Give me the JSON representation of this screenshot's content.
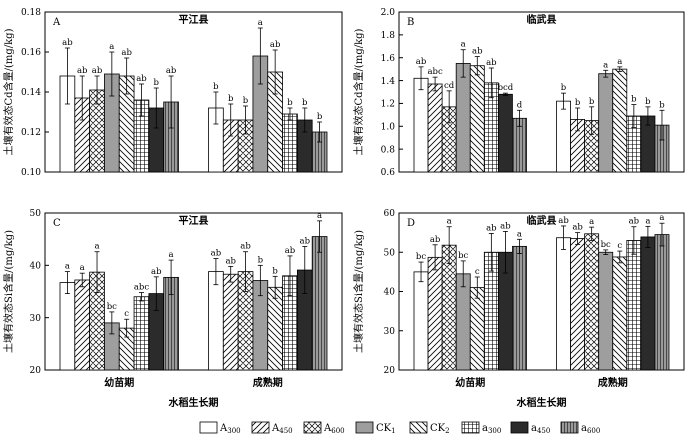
{
  "figure": {
    "x_title": "水稻生长期",
    "groups": [
      "幼苗期",
      "成熟期"
    ],
    "treatments": [
      {
        "key": "A300",
        "base": "A",
        "sub": "300",
        "pattern": "white"
      },
      {
        "key": "A450",
        "base": "A",
        "sub": "450",
        "pattern": "diag-fwd"
      },
      {
        "key": "A600",
        "base": "A",
        "sub": "600",
        "pattern": "crosshatch"
      },
      {
        "key": "CK1",
        "base": "CK",
        "sub": "1",
        "pattern": "gray"
      },
      {
        "key": "CK2",
        "base": "CK",
        "sub": "2",
        "pattern": "diag-back"
      },
      {
        "key": "a300",
        "base": "a",
        "sub": "300",
        "pattern": "grid"
      },
      {
        "key": "a450",
        "base": "a",
        "sub": "450",
        "pattern": "black"
      },
      {
        "key": "a600",
        "base": "a",
        "sub": "600",
        "pattern": "vstripe"
      }
    ]
  },
  "chart_data": [
    {
      "type": "bar",
      "panel": "A",
      "title": "平江县",
      "ylabel": "土壤有效态Cd含量/(mg/kg)",
      "ylim": [
        0.1,
        0.18
      ],
      "yticks": [
        0.1,
        0.12,
        0.14,
        0.16,
        0.18
      ],
      "ytick_labels": [
        "0.10",
        "0.12",
        "0.14",
        "0.16",
        "0.18"
      ],
      "categories": [
        "幼苗期",
        "成熟期"
      ],
      "series": [
        {
          "name": "A300",
          "values": [
            0.148,
            0.132
          ],
          "errors": [
            0.014,
            0.008
          ],
          "labels": [
            "ab",
            "b"
          ]
        },
        {
          "name": "A450",
          "values": [
            0.137,
            0.126
          ],
          "errors": [
            0.011,
            0.008
          ],
          "labels": [
            "ab",
            "b"
          ]
        },
        {
          "name": "A600",
          "values": [
            0.141,
            0.126
          ],
          "errors": [
            0.007,
            0.007
          ],
          "labels": [
            "ab",
            "b"
          ]
        },
        {
          "name": "CK1",
          "values": [
            0.149,
            0.158
          ],
          "errors": [
            0.011,
            0.014
          ],
          "labels": [
            "a",
            "a"
          ]
        },
        {
          "name": "CK2",
          "values": [
            0.148,
            0.15
          ],
          "errors": [
            0.009,
            0.011
          ],
          "labels": [
            "ab",
            "ab"
          ]
        },
        {
          "name": "a300",
          "values": [
            0.136,
            0.129
          ],
          "errors": [
            0.008,
            0.003
          ],
          "labels": [
            "ab",
            "b"
          ]
        },
        {
          "name": "a450",
          "values": [
            0.132,
            0.126
          ],
          "errors": [
            0.01,
            0.006
          ],
          "labels": [
            "b",
            "b"
          ]
        },
        {
          "name": "a600",
          "values": [
            0.135,
            0.12
          ],
          "errors": [
            0.013,
            0.005
          ],
          "labels": [
            "ab",
            "b"
          ]
        }
      ]
    },
    {
      "type": "bar",
      "panel": "B",
      "title": "临武县",
      "ylabel": "土壤有效态Cd含量/(mg/kg)",
      "ylim": [
        0.6,
        2.0
      ],
      "yticks": [
        0.6,
        0.8,
        1.0,
        1.2,
        1.4,
        1.6,
        1.8,
        2.0
      ],
      "ytick_labels": [
        "0.6",
        "0.8",
        "1.0",
        "1.2",
        "1.4",
        "1.6",
        "1.8",
        "2.0"
      ],
      "categories": [
        "幼苗期",
        "成熟期"
      ],
      "series": [
        {
          "name": "A300",
          "values": [
            1.42,
            1.22
          ],
          "errors": [
            0.1,
            0.07
          ],
          "labels": [
            "ab",
            "b"
          ]
        },
        {
          "name": "A450",
          "values": [
            1.37,
            1.06
          ],
          "errors": [
            0.06,
            0.1
          ],
          "labels": [
            "abc",
            "b"
          ]
        },
        {
          "name": "A600",
          "values": [
            1.17,
            1.05
          ],
          "errors": [
            0.14,
            0.12
          ],
          "labels": [
            "cd",
            "b"
          ]
        },
        {
          "name": "CK1",
          "values": [
            1.55,
            1.46
          ],
          "errors": [
            0.12,
            0.03
          ],
          "labels": [
            "a",
            "a"
          ]
        },
        {
          "name": "CK2",
          "values": [
            1.53,
            1.5
          ],
          "errors": [
            0.08,
            0.02
          ],
          "labels": [
            "ab",
            "a"
          ]
        },
        {
          "name": "a300",
          "values": [
            1.38,
            1.09
          ],
          "errors": [
            0.13,
            0.1
          ],
          "labels": [
            "ab",
            "b"
          ]
        },
        {
          "name": "a450",
          "values": [
            1.28,
            1.09
          ],
          "errors": [
            0.01,
            0.08
          ],
          "labels": [
            "bcd",
            "b"
          ]
        },
        {
          "name": "a600",
          "values": [
            1.07,
            1.01
          ],
          "errors": [
            0.07,
            0.13
          ],
          "labels": [
            "d",
            "b"
          ]
        }
      ]
    },
    {
      "type": "bar",
      "panel": "C",
      "title": "平江县",
      "ylabel": "土壤有效态Si含量/(mg/kg)",
      "ylim": [
        20,
        50
      ],
      "yticks": [
        20,
        30,
        40,
        50
      ],
      "ytick_labels": [
        "20",
        "30",
        "40",
        "50"
      ],
      "categories": [
        "幼苗期",
        "成熟期"
      ],
      "series": [
        {
          "name": "A300",
          "values": [
            36.7,
            38.8
          ],
          "errors": [
            2.1,
            2.5
          ],
          "labels": [
            "a",
            "ab"
          ]
        },
        {
          "name": "A450",
          "values": [
            37.2,
            38.3
          ],
          "errors": [
            1.3,
            1.5
          ],
          "labels": [
            "a",
            "ab"
          ]
        },
        {
          "name": "A600",
          "values": [
            38.7,
            38.8
          ],
          "errors": [
            3.9,
            3.8
          ],
          "labels": [
            "a",
            "ab"
          ]
        },
        {
          "name": "CK1",
          "values": [
            29.0,
            37.1
          ],
          "errors": [
            2.1,
            2.9
          ],
          "labels": [
            "bc",
            "b"
          ]
        },
        {
          "name": "CK2",
          "values": [
            28.0,
            35.8
          ],
          "errors": [
            1.7,
            2.1
          ],
          "labels": [
            "c",
            "b"
          ]
        },
        {
          "name": "a300",
          "values": [
            34.0,
            38.0
          ],
          "errors": [
            0.8,
            3.8
          ],
          "labels": [
            "abc",
            "ab"
          ]
        },
        {
          "name": "a450",
          "values": [
            34.6,
            39.1
          ],
          "errors": [
            3.2,
            4.5
          ],
          "labels": [
            "ab",
            "ab"
          ]
        },
        {
          "name": "a600",
          "values": [
            37.7,
            45.5
          ],
          "errors": [
            3.3,
            3.0
          ],
          "labels": [
            "a",
            "a"
          ]
        }
      ]
    },
    {
      "type": "bar",
      "panel": "D",
      "title": "临武县",
      "ylabel": "土壤有效态Si含量/(mg/kg)",
      "ylim": [
        20,
        60
      ],
      "yticks": [
        20,
        30,
        40,
        50,
        60
      ],
      "ytick_labels": [
        "20",
        "30",
        "40",
        "50",
        "60"
      ],
      "categories": [
        "幼苗期",
        "成熟期"
      ],
      "series": [
        {
          "name": "A300",
          "values": [
            45.0,
            53.7
          ],
          "errors": [
            2.5,
            3.0
          ],
          "labels": [
            "bc",
            "ab"
          ]
        },
        {
          "name": "A450",
          "values": [
            48.7,
            53.5
          ],
          "errors": [
            3.2,
            1.5
          ],
          "labels": [
            "ab",
            "ab"
          ]
        },
        {
          "name": "A600",
          "values": [
            51.8,
            54.7
          ],
          "errors": [
            4.7,
            1.7
          ],
          "labels": [
            "a",
            "a"
          ]
        },
        {
          "name": "CK1",
          "values": [
            44.5,
            50.0
          ],
          "errors": [
            3.3,
            0.6
          ],
          "labels": [
            "bc",
            "bc"
          ]
        },
        {
          "name": "CK2",
          "values": [
            41.0,
            48.8
          ],
          "errors": [
            2.7,
            1.5
          ],
          "labels": [
            "c",
            "c"
          ]
        },
        {
          "name": "a300",
          "values": [
            50.0,
            53.0
          ],
          "errors": [
            4.8,
            3.5
          ],
          "labels": [
            "ab",
            "ab"
          ]
        },
        {
          "name": "a450",
          "values": [
            50.0,
            53.9
          ],
          "errors": [
            5.3,
            2.7
          ],
          "labels": [
            "ab",
            "a"
          ]
        },
        {
          "name": "a600",
          "values": [
            51.5,
            54.5
          ],
          "errors": [
            1.8,
            2.9
          ],
          "labels": [
            "a",
            "a"
          ]
        }
      ]
    }
  ]
}
